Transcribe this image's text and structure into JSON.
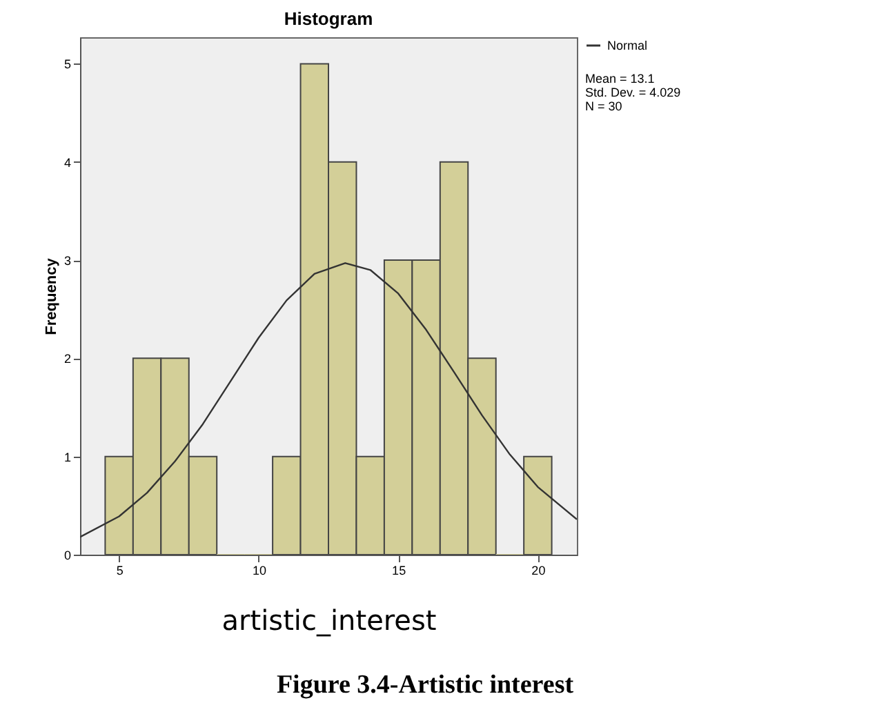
{
  "chart_data": {
    "type": "histogram",
    "title": "Histogram",
    "xlabel": "artistic_interest",
    "ylabel": "Frequency",
    "bins": [
      4.5,
      5.5,
      6.5,
      7.5,
      8.5,
      9.5,
      10.5,
      11.5,
      12.5,
      13.5,
      14.5,
      15.5,
      16.5,
      17.5,
      18.5,
      19.5,
      20.5
    ],
    "values": [
      1,
      2,
      2,
      1,
      0,
      0,
      1,
      5,
      4,
      1,
      3,
      3,
      4,
      2,
      0,
      1
    ],
    "color": "#d3cf98",
    "series": [
      {
        "name": "Normal",
        "type": "line",
        "color": "#333333",
        "x": [
          3.6,
          5,
          6,
          7,
          8,
          9,
          10,
          11,
          12,
          13.1,
          14,
          15,
          16,
          17,
          18,
          19,
          20,
          21.4
        ],
        "values": [
          0.18,
          0.39,
          0.63,
          0.95,
          1.33,
          1.77,
          2.21,
          2.59,
          2.86,
          2.97,
          2.9,
          2.66,
          2.29,
          1.86,
          1.42,
          1.02,
          0.69,
          0.36
        ]
      }
    ],
    "xlim": [
      3.6,
      21.4
    ],
    "xticks": [
      5,
      10,
      15,
      20
    ],
    "ylim": [
      0,
      5.27
    ],
    "yticks": [
      0,
      1,
      2,
      3,
      4,
      5
    ],
    "grid": false,
    "legend": "top right",
    "annotations": [
      "Mean = 13.1",
      "Std. Dev. = 4.029",
      "N = 30",
      "Figure 3.4-Artistic interest"
    ]
  }
}
